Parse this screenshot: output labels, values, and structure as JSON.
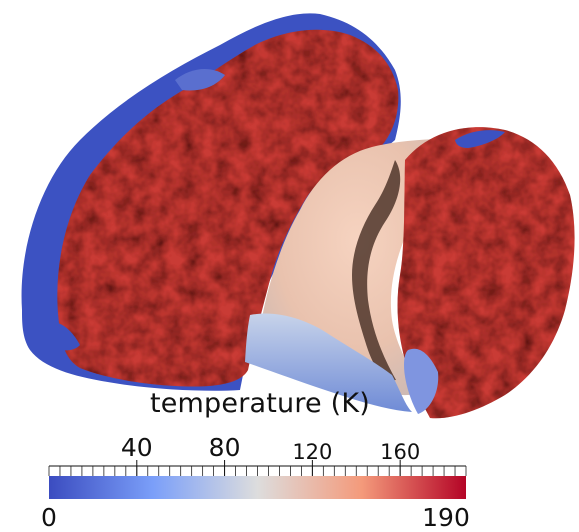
{
  "colorbar": {
    "title": "temperature (K)",
    "min_label": "0",
    "max_label": "190",
    "min": 0,
    "max": 190,
    "major_ticks": [
      "40",
      "80",
      "120",
      "160"
    ],
    "major_tick_values": [
      40,
      80,
      120,
      160
    ],
    "colors": {
      "low": "#3b4cc0",
      "mid": "#dddddd",
      "high": "#b40426"
    }
  },
  "comet": {
    "colors": {
      "hot": "#c93a36",
      "cold": "#3c52c2",
      "neck": "#f0c0a8",
      "shadow": "#2a1510"
    }
  }
}
